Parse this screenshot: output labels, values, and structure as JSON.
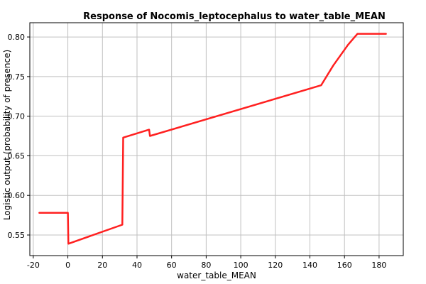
{
  "chart_data": {
    "type": "line",
    "title": "Response of Nocomis_leptocephalus to water_table_MEAN",
    "xlabel": "water_table_MEAN",
    "ylabel": "Logistic output (probability of presence)",
    "xlim": [
      -22,
      194
    ],
    "ylim": [
      0.524,
      0.818
    ],
    "xticks": [
      -20,
      0,
      20,
      40,
      60,
      80,
      100,
      120,
      140,
      160,
      180
    ],
    "yticks": [
      0.55,
      0.6,
      0.65,
      0.7,
      0.75,
      0.8
    ],
    "xtick_labels": [
      "-20",
      "0",
      "20",
      "40",
      "60",
      "80",
      "100",
      "120",
      "140",
      "160",
      "180"
    ],
    "ytick_labels": [
      "0.55",
      "0.60",
      "0.65",
      "0.70",
      "0.75",
      "0.80"
    ],
    "grid": true,
    "line_color": "#ff2020",
    "series": [
      {
        "x": [
          -16.5,
          0.0,
          0.3,
          31.5,
          32.0,
          47.0,
          47.5,
          146.5,
          153.5,
          162.0,
          167.5,
          184.0
        ],
        "y": [
          0.578,
          0.578,
          0.539,
          0.563,
          0.673,
          0.683,
          0.675,
          0.739,
          0.764,
          0.79,
          0.804,
          0.804
        ]
      }
    ]
  }
}
